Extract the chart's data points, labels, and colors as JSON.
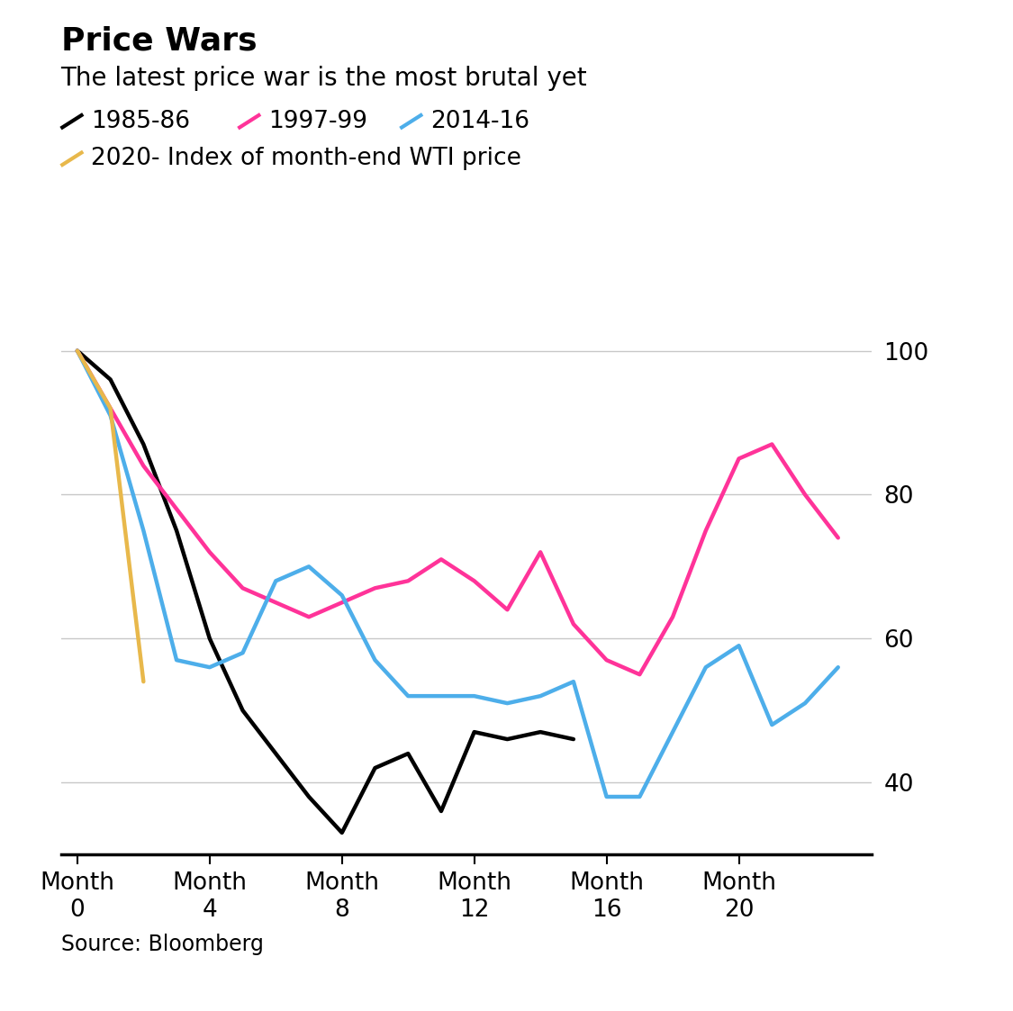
{
  "title": "Price Wars",
  "subtitle": "The latest price war is the most brutal yet",
  "source": "Source: Bloomberg",
  "series": {
    "1985-86": {
      "color": "#000000",
      "x": [
        0,
        1,
        2,
        3,
        4,
        5,
        6,
        7,
        8,
        9,
        10,
        11,
        12,
        13,
        14,
        15
      ],
      "y": [
        100,
        96,
        87,
        75,
        60,
        50,
        44,
        38,
        33,
        42,
        44,
        36,
        47,
        46,
        47,
        46
      ]
    },
    "1997-99": {
      "color": "#FF3399",
      "x": [
        0,
        1,
        2,
        3,
        4,
        5,
        6,
        7,
        8,
        9,
        10,
        11,
        12,
        13,
        14,
        15,
        16,
        17,
        18,
        19,
        20,
        21,
        22,
        23
      ],
      "y": [
        100,
        92,
        84,
        78,
        72,
        67,
        65,
        63,
        65,
        67,
        68,
        71,
        68,
        64,
        72,
        62,
        57,
        55,
        63,
        75,
        85,
        87,
        80,
        74
      ]
    },
    "2014-16": {
      "color": "#4DAEEA",
      "x": [
        0,
        1,
        2,
        3,
        4,
        5,
        6,
        7,
        8,
        9,
        10,
        11,
        12,
        13,
        14,
        15,
        16,
        17,
        18,
        19,
        20,
        21,
        22,
        23
      ],
      "y": [
        100,
        91,
        75,
        57,
        56,
        58,
        68,
        70,
        66,
        57,
        52,
        52,
        52,
        51,
        52,
        54,
        38,
        38,
        47,
        56,
        59,
        48,
        51,
        56
      ]
    },
    "2020": {
      "color": "#E8B84B",
      "x": [
        0,
        1,
        2
      ],
      "y": [
        100,
        92,
        54
      ]
    }
  },
  "ylim": [
    30,
    108
  ],
  "xlim": [
    -0.5,
    24
  ],
  "yticks": [
    40,
    60,
    80,
    100
  ],
  "xticks": [
    0,
    4,
    8,
    12,
    16,
    20
  ],
  "bg_color": "#FFFFFF",
  "grid_color": "#C8C8C8",
  "line_width": 3.2,
  "title_fontsize": 26,
  "subtitle_fontsize": 20,
  "tick_fontsize": 19,
  "source_fontsize": 17
}
